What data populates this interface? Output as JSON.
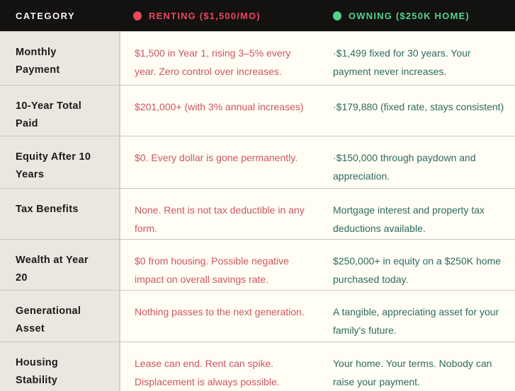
{
  "chart_data": {
    "type": "table",
    "header": {
      "category": "CATEGORY",
      "renting": "RENTING ($1,500/MO)",
      "owning": "OWNING ($250K HOME)"
    },
    "rows": [
      {
        "category": "Monthly Payment",
        "renting": "$1,500 in Year 1, rising 3–5% every year. Zero control over increases.",
        "owning": "·$1,499 fixed for 30 years. Your payment never increases."
      },
      {
        "category": "10-Year Total Paid",
        "renting": "$201,000+ (with 3% annual increases)",
        "owning": "·$179,880 (fixed rate, stays consistent)"
      },
      {
        "category": "Equity After 10 Years",
        "renting": "$0. Every dollar is gone permanently.",
        "owning": "·$150,000 through paydown and appreciation."
      },
      {
        "category": "Tax Benefits",
        "renting": "None. Rent is not tax deductible in any form.",
        "owning": "Mortgage interest and property tax deductions available."
      },
      {
        "category": "Wealth at Year 20",
        "renting": "$0 from housing. Possible negative impact on overall savings rate.",
        "owning": "$250,000+ in equity on a $250K home purchased today."
      },
      {
        "category": "Generational Asset",
        "renting": "Nothing passes to the next generation.",
        "owning": "A tangible, appreciating asset for your family's future."
      },
      {
        "category": "Housing Stability",
        "renting": "Lease can end. Rent can spike. Displacement is always possible.",
        "owning": "Your home. Your terms. Nobody can raise your payment."
      }
    ]
  },
  "colors": {
    "renting_accent": "#e8495c",
    "owning_accent": "#50d48b",
    "renting_text": "#cc5660",
    "owning_text": "#2e6b60",
    "header_bg": "#141111",
    "header_text": "#f7f6f4",
    "category_col_bg": "#eae7e1",
    "category_text": "#1b1a18",
    "content_bg": "#fffdf4",
    "row_divider": "#c9c6c0",
    "col_divider": "#d2cfc8"
  }
}
